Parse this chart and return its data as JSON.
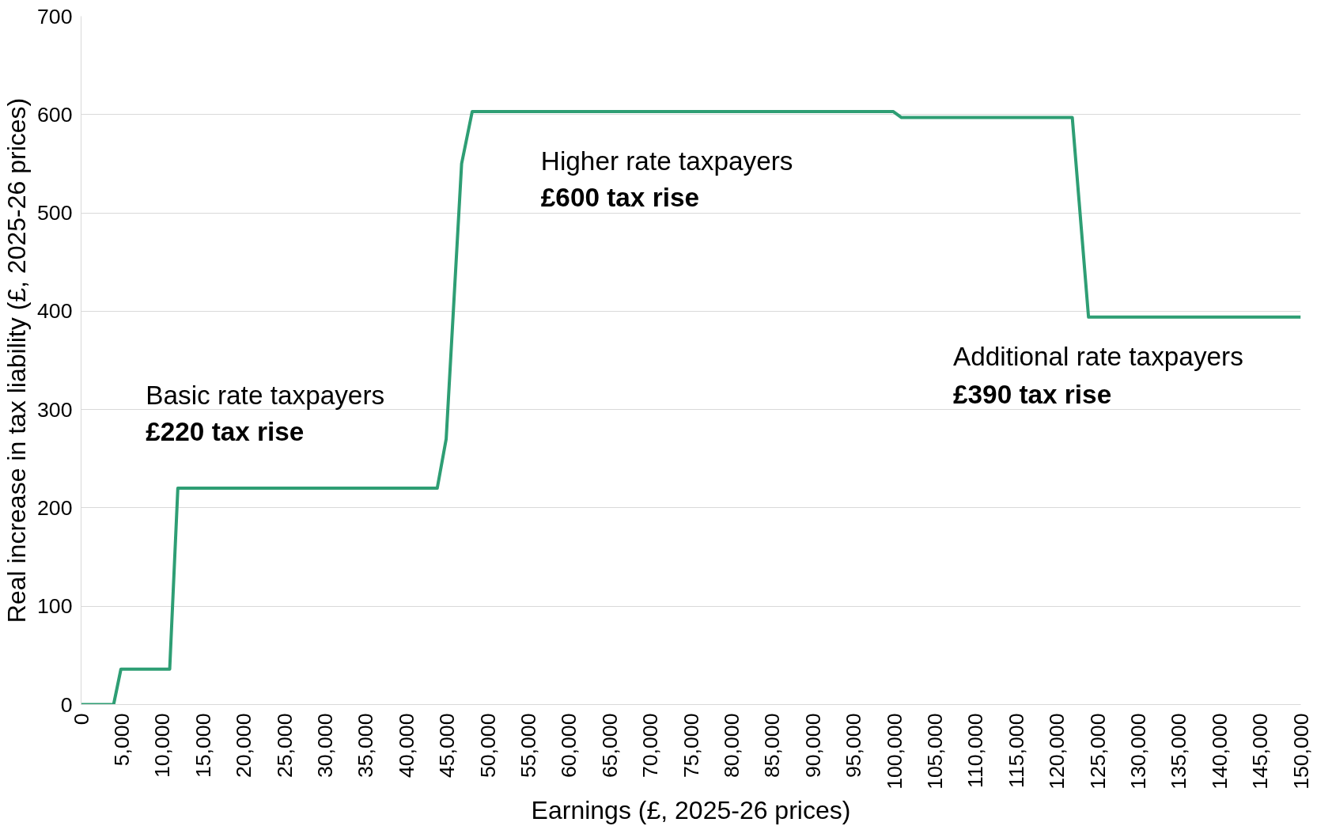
{
  "chart_data": {
    "type": "line",
    "xlabel": "Earnings (£, 2025-26 prices)",
    "ylabel": "Real increase in tax liability (£, 2025-26 prices)",
    "x": [
      0,
      4000,
      4900,
      10900,
      11900,
      43800,
      44900,
      46800,
      48100,
      99900,
      100900,
      121900,
      123900,
      150000
    ],
    "series": [
      {
        "color": "#2e9e74",
        "values": [
          0,
          0,
          36,
          36,
          220,
          220,
          270,
          550,
          603,
          603,
          597,
          597,
          394,
          394
        ]
      }
    ],
    "xlim": [
      0,
      150000
    ],
    "xticks": [
      0,
      {
        "value": 5000,
        "label": "5,000"
      },
      {
        "value": 10000,
        "label": "10,000"
      },
      {
        "value": 15000,
        "label": "15,000"
      },
      {
        "value": 20000,
        "label": "20,000"
      },
      {
        "value": 25000,
        "label": "25,000"
      },
      {
        "value": 30000,
        "label": "30,000"
      },
      {
        "value": 35000,
        "label": "35,000"
      },
      {
        "value": 40000,
        "label": "40,000"
      },
      {
        "value": 45000,
        "label": "45,000"
      },
      {
        "value": 50000,
        "label": "50,000"
      },
      {
        "value": 55000,
        "label": "55,000"
      },
      {
        "value": 60000,
        "label": "60,000"
      },
      {
        "value": 65000,
        "label": "65,000"
      },
      {
        "value": 70000,
        "label": "70,000"
      },
      {
        "value": 75000,
        "label": "75,000"
      },
      {
        "value": 80000,
        "label": "80,000"
      },
      {
        "value": 85000,
        "label": "85,000"
      },
      {
        "value": 90000,
        "label": "90,000"
      },
      {
        "value": 95000,
        "label": "95,000"
      },
      {
        "value": 100000,
        "label": "100,000"
      },
      {
        "value": 105000,
        "label": "105,000"
      },
      {
        "value": 110000,
        "label": "110,000"
      },
      {
        "value": 115000,
        "label": "115,000"
      },
      {
        "value": 120000,
        "label": "120,000"
      },
      {
        "value": 125000,
        "label": "125,000"
      },
      {
        "value": 130000,
        "label": "130,000"
      },
      {
        "value": 135000,
        "label": "135,000"
      },
      {
        "value": 140000,
        "label": "140,000"
      },
      {
        "value": 145000,
        "label": "145,000"
      },
      {
        "value": 150000,
        "label": "150,000"
      }
    ],
    "ylim": [
      0,
      700
    ],
    "yticks": [
      0,
      100,
      200,
      300,
      400,
      500,
      600,
      700
    ],
    "grid": "y",
    "marker": "none",
    "line_style": "solid",
    "annotations": [
      "Basic rate taxpayers",
      "£220 tax rise",
      "Higher rate taxpayers",
      "£600 tax rise",
      "Additional rate taxpayers",
      "£390 tax rise"
    ]
  }
}
